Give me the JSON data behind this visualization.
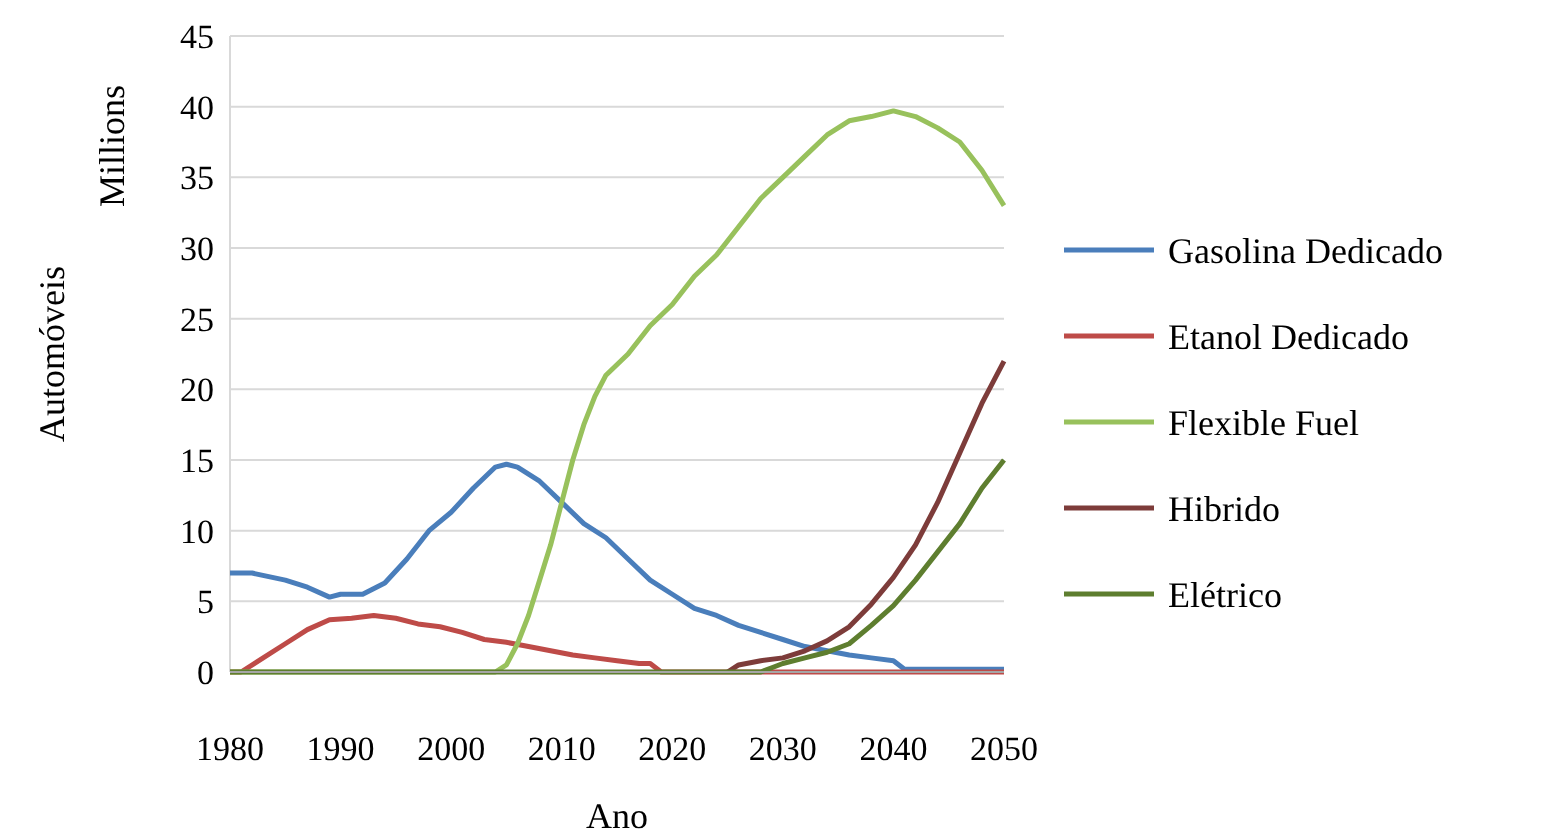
{
  "chart_data": {
    "type": "line",
    "xlabel": "Ano",
    "ylabel": "Automóveis",
    "annotations": [
      "Millions"
    ],
    "xlim": [
      1980,
      2050
    ],
    "xticks": [
      1980,
      1990,
      2000,
      2010,
      2020,
      2030,
      2040,
      2050
    ],
    "ylim": [
      0,
      45
    ],
    "yticks": [
      0,
      5,
      10,
      15,
      20,
      25,
      30,
      35,
      40,
      45
    ],
    "grid": "y",
    "legend": "right",
    "marker": "none",
    "line_style": "solid",
    "series": [
      {
        "name": "Gasolina Dedicado",
        "color": "#4a7ebb",
        "x": [
          1980,
          1982,
          1985,
          1987,
          1989,
          1990,
          1992,
          1994,
          1996,
          1998,
          2000,
          2002,
          2004,
          2005,
          2006,
          2008,
          2010,
          2012,
          2014,
          2016,
          2018,
          2020,
          2022,
          2024,
          2026,
          2028,
          2030,
          2032,
          2034,
          2036,
          2038,
          2040,
          2041,
          2042,
          2050
        ],
        "values": [
          7,
          7,
          6.5,
          6,
          5.3,
          5.5,
          5.5,
          6.3,
          8,
          10,
          11.3,
          13,
          14.5,
          14.7,
          14.5,
          13.5,
          12,
          10.5,
          9.5,
          8,
          6.5,
          5.5,
          4.5,
          4,
          3.3,
          2.8,
          2.3,
          1.8,
          1.5,
          1.2,
          1,
          0.8,
          0.2,
          0.2,
          0.2
        ]
      },
      {
        "name": "Etanol Dedicado",
        "color": "#be4b48",
        "x": [
          1980,
          1981,
          1983,
          1985,
          1987,
          1989,
          1991,
          1993,
          1995,
          1997,
          1999,
          2001,
          2003,
          2005,
          2007,
          2009,
          2011,
          2013,
          2015,
          2017,
          2018,
          2019,
          2050
        ],
        "values": [
          0,
          0,
          1,
          2,
          3,
          3.7,
          3.8,
          4,
          3.8,
          3.4,
          3.2,
          2.8,
          2.3,
          2.1,
          1.8,
          1.5,
          1.2,
          1,
          0.8,
          0.6,
          0.6,
          0,
          0
        ]
      },
      {
        "name": "Flexible Fuel",
        "color": "#98c15c",
        "x": [
          1980,
          2004,
          2005,
          2006,
          2007,
          2008,
          2009,
          2010,
          2011,
          2012,
          2013,
          2014,
          2016,
          2018,
          2020,
          2022,
          2024,
          2026,
          2028,
          2030,
          2032,
          2034,
          2036,
          2038,
          2040,
          2042,
          2044,
          2046,
          2048,
          2050
        ],
        "values": [
          0,
          0,
          0.5,
          2,
          4,
          6.5,
          9,
          12,
          15,
          17.5,
          19.5,
          21,
          22.5,
          24.5,
          26,
          28,
          29.5,
          31.5,
          33.5,
          35,
          36.5,
          38,
          39,
          39.3,
          39.7,
          39.3,
          38.5,
          37.5,
          35.5,
          33
        ]
      },
      {
        "name": "Hibrido",
        "color": "#7d3c3a",
        "x": [
          2025,
          2026,
          2028,
          2030,
          2032,
          2034,
          2036,
          2038,
          2040,
          2042,
          2044,
          2046,
          2048,
          2050
        ],
        "values": [
          0,
          0.5,
          0.8,
          1,
          1.5,
          2.2,
          3.2,
          4.8,
          6.7,
          9,
          12,
          15.5,
          19,
          22
        ]
      },
      {
        "name": "Elétrico",
        "color": "#5e7e2f",
        "x": [
          1980,
          2028,
          2029,
          2030,
          2032,
          2034,
          2036,
          2038,
          2040,
          2042,
          2044,
          2046,
          2048,
          2050
        ],
        "values": [
          0,
          0,
          0.3,
          0.6,
          1,
          1.4,
          2,
          3.3,
          4.7,
          6.5,
          8.5,
          10.5,
          13,
          15
        ]
      }
    ]
  }
}
